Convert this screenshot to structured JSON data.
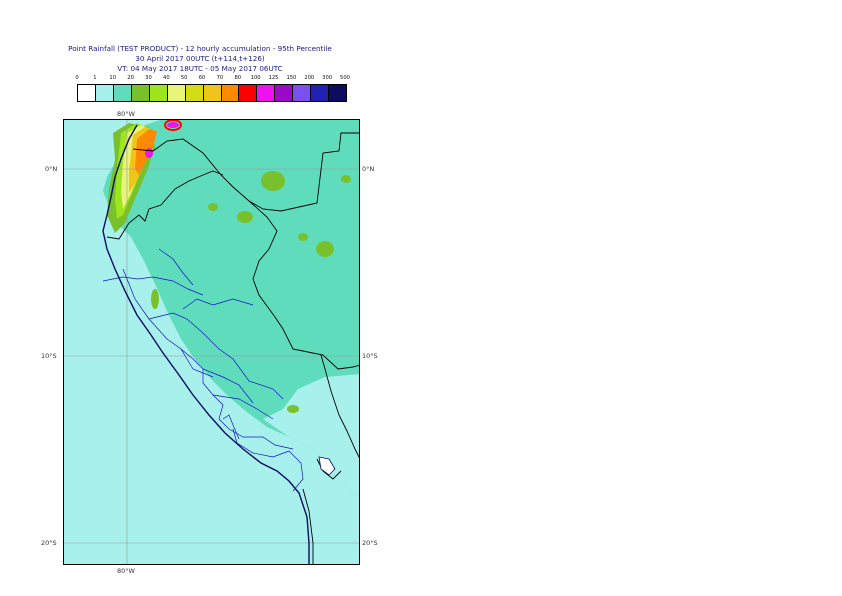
{
  "header": {
    "title": "Point Rainfall (TEST PRODUCT) - 12 hourly accumulation - 95th Percentile",
    "run": "30 April 2017 00UTC (t+114,t+126)",
    "valid": "VT: 04 May 2017 18UTC - 05 May 2017 06UTC"
  },
  "legend": {
    "ticks": [
      "0",
      "1",
      "10",
      "20",
      "30",
      "40",
      "50",
      "60",
      "70",
      "80",
      "100",
      "125",
      "150",
      "200",
      "300",
      "500"
    ],
    "colors": [
      "#ffffff",
      "#a8f0ec",
      "#5fdcbc",
      "#79c12c",
      "#9ee51e",
      "#e8f57a",
      "#d4dc16",
      "#f0c418",
      "#ff8a00",
      "#ff0000",
      "#ee12ee",
      "#9c0ac8",
      "#7c50f0",
      "#2020b4",
      "#0c0c60"
    ]
  },
  "map": {
    "lon_labels": [
      "80°W",
      "80°W"
    ],
    "lat_labels": [
      "0°N",
      "10°S",
      "20°S"
    ],
    "colors": {
      "sea": "#a8f0ec",
      "land": "#5fdcbc",
      "coast": "#0c0c60",
      "regions": "#1414c8",
      "grid": "#9a9a9a"
    }
  }
}
